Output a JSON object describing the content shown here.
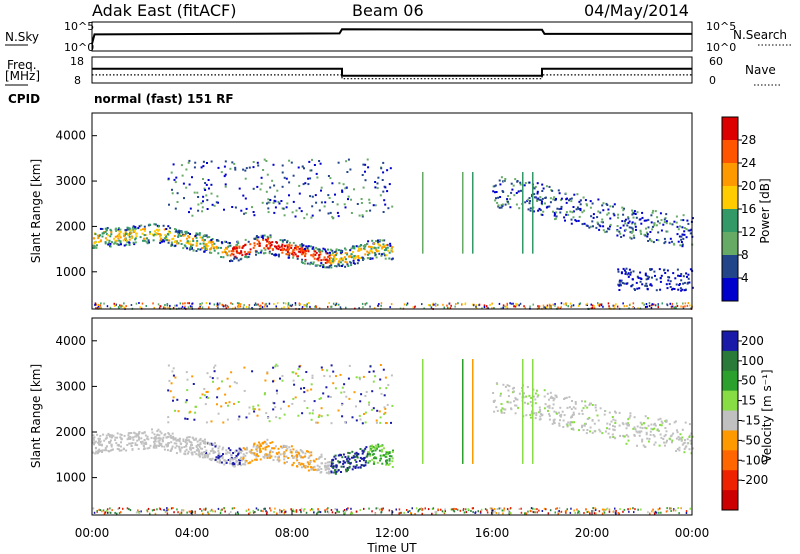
{
  "header": {
    "station": "Adak East (fitACF)",
    "beam": "Beam 06",
    "date": "04/May/2014"
  },
  "chart_data": [
    {
      "type": "line",
      "name": "noise-panel",
      "left_label": "N.Sky",
      "right_label": "N.Search",
      "left_ticks": [
        "10^5",
        "10^0"
      ],
      "right_ticks": [
        "10^5",
        "10^0"
      ],
      "x_range": [
        0,
        24
      ],
      "series": [
        {
          "x": [
            0,
            0.1,
            9.9,
            10.0,
            18.0,
            18.1,
            24
          ],
          "y": [
            1,
            2.8,
            3.0,
            3.8,
            3.7,
            2.9,
            2.9
          ]
        }
      ]
    },
    {
      "type": "line",
      "name": "frequency-panel",
      "left_label": "Freq.",
      "left_unit": "[MHz]",
      "right_label": "Nave",
      "left_ticks": [
        "18",
        "8"
      ],
      "right_ticks": [
        "60",
        "0"
      ],
      "sub_label": "CPID",
      "mode_label": "normal (fast) 151 RF",
      "x_range": [
        0,
        24
      ],
      "series": [
        {
          "name": "Freq.",
          "x": [
            0,
            10.0,
            10.0,
            18.0,
            18.0,
            24
          ],
          "y": [
            13.3,
            13.3,
            10.5,
            10.5,
            13.3,
            13.3
          ]
        },
        {
          "name": "Nave",
          "x": [
            0,
            10.0,
            10.0,
            18.0,
            18.0,
            24
          ],
          "y": [
            17,
            17,
            8,
            8,
            17,
            17
          ]
        }
      ]
    },
    {
      "type": "heatmap",
      "name": "power-panel",
      "ylabel": "Slant Range [km]",
      "yticks": [
        "4000",
        "3000",
        "2000",
        "1000"
      ],
      "ylim": [
        180,
        4500
      ],
      "x_range": [
        0,
        24
      ],
      "colorbar": {
        "label": "Power [dB]",
        "ticks": [
          "28",
          "24",
          "20",
          "16",
          "12",
          "8",
          "4"
        ],
        "colors": [
          "#dd0000",
          "#ff5500",
          "#ff9900",
          "#ffcc00",
          "#339966",
          "#66aa66",
          "#224488",
          "#0000cc"
        ]
      },
      "features": [
        {
          "from_x": 0.0,
          "to_x": 12.0,
          "ranges_km": [
            1750,
            1780,
            1800,
            1820,
            1850,
            1880,
            1820,
            1720,
            1700,
            1650,
            1550,
            1450,
            1500,
            1600,
            1650,
            1550,
            1500,
            1400,
            1350,
            1300,
            1320,
            1400,
            1500,
            1550,
            1450
          ]
        },
        {
          "from_x": 16.0,
          "to_x": 24.0,
          "ranges_km": [
            2800,
            2700,
            2500,
            2300,
            2100,
            2000,
            1900
          ]
        }
      ]
    },
    {
      "type": "heatmap",
      "name": "velocity-panel",
      "ylabel": "Slant Range [km]",
      "yticks": [
        "4000",
        "3000",
        "2000",
        "1000"
      ],
      "ylim": [
        180,
        4500
      ],
      "xlabel": "Time UT",
      "xticks": [
        "00:00",
        "04:00",
        "08:00",
        "12:00",
        "16:00",
        "20:00",
        "00:00"
      ],
      "x_range": [
        0,
        24
      ],
      "colorbar": {
        "label": "Velocity [m s⁻¹]",
        "ticks": [
          "200",
          "100",
          "50",
          "15",
          "-15",
          "-50",
          "-100",
          "-200"
        ],
        "colors": [
          "#1a1aa8",
          "#2a7a3a",
          "#2ca02c",
          "#88dd44",
          "#c0c0c0",
          "#ff9900",
          "#ff6600",
          "#ee2200",
          "#cc0000"
        ]
      }
    }
  ]
}
